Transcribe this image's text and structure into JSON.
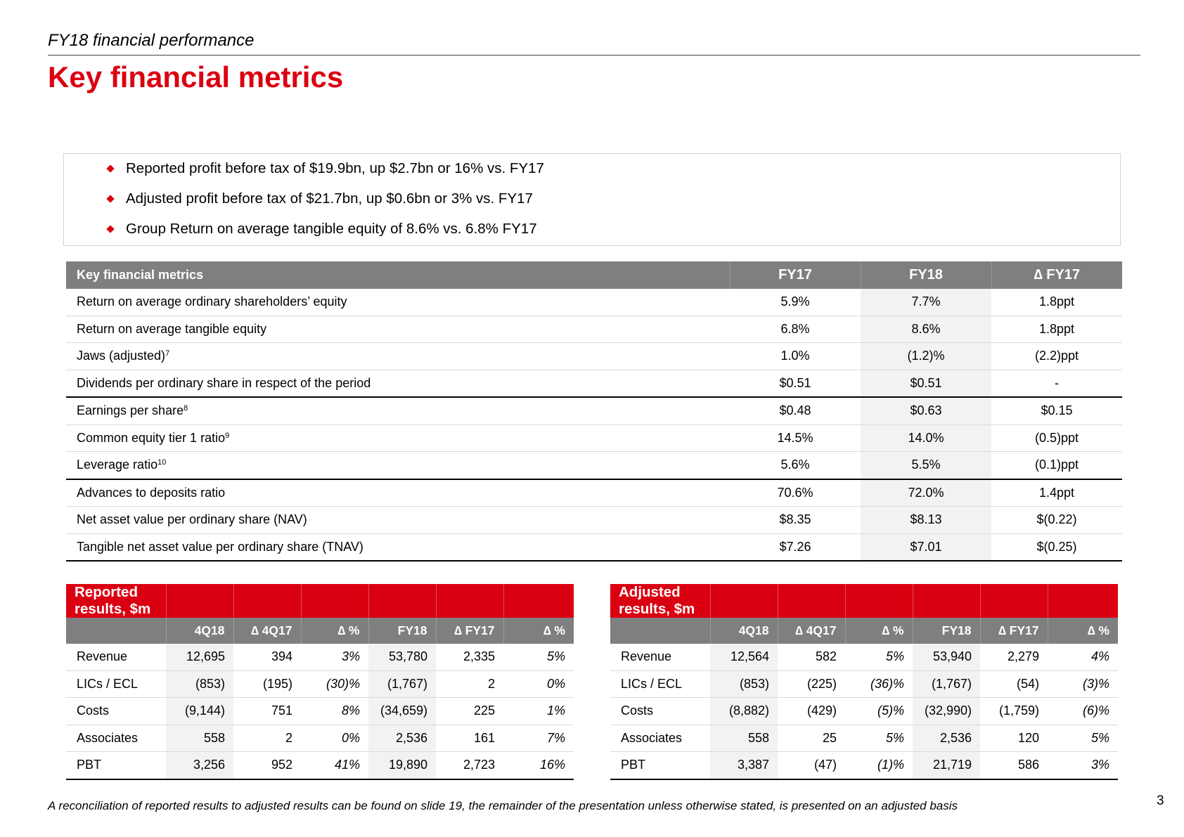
{
  "header": {
    "section": "FY18 financial performance",
    "title": "Key financial metrics"
  },
  "highlights": [
    "Reported profit before tax of $19.9bn, up $2.7bn or 16% vs. FY17",
    "Adjusted profit before tax of $21.7bn, up $0.6bn or 3% vs. FY17",
    "Group Return on average tangible equity of 8.6% vs. 6.8% FY17"
  ],
  "metrics_table": {
    "columns": [
      "Key financial metrics",
      "FY17",
      "FY18",
      "∆ FY17"
    ],
    "rows": [
      {
        "label": "Return on average ordinary shareholders’ equity",
        "note": "",
        "fy17": "5.9%",
        "fy18": "7.7%",
        "delta": "1.8ppt"
      },
      {
        "label": "Return on average tangible equity",
        "note": "",
        "fy17": "6.8%",
        "fy18": "8.6%",
        "delta": "1.8ppt"
      },
      {
        "label": "Jaws (adjusted)",
        "note": "7",
        "fy17": "1.0%",
        "fy18": "(1.2)%",
        "delta": "(2.2)ppt"
      },
      {
        "label": "Dividends per ordinary share in respect of the period",
        "note": "",
        "fy17": "$0.51",
        "fy18": "$0.51",
        "delta": "-"
      },
      {
        "label": "Earnings per share",
        "note": "8",
        "fy17": "$0.48",
        "fy18": "$0.63",
        "delta": "$0.15"
      },
      {
        "label": "Common equity tier 1 ratio",
        "note": "9",
        "fy17": "14.5%",
        "fy18": "14.0%",
        "delta": "(0.5)ppt"
      },
      {
        "label": "Leverage ratio",
        "note": "10",
        "fy17": "5.6%",
        "fy18": "5.5%",
        "delta": "(0.1)ppt"
      },
      {
        "label": "Advances to deposits ratio",
        "note": "",
        "fy17": "70.6%",
        "fy18": "72.0%",
        "delta": "1.4ppt"
      },
      {
        "label": "Net asset value per ordinary share (NAV)",
        "note": "",
        "fy17": "$8.35",
        "fy18": "$8.13",
        "delta": "$(0.22)"
      },
      {
        "label": "Tangible net asset value per ordinary share (TNAV)",
        "note": "",
        "fy17": "$7.26",
        "fy18": "$7.01",
        "delta": "$(0.25)"
      }
    ]
  },
  "reported_results": {
    "title": "Reported results, $m",
    "columns": [
      "4Q18",
      "∆ 4Q17",
      "∆ %",
      "FY18",
      "∆ FY17",
      "∆ %"
    ],
    "rows": [
      {
        "label": "Revenue",
        "values": [
          "12,695",
          "394",
          "3%",
          "53,780",
          "2,335",
          "5%"
        ]
      },
      {
        "label": "LICs / ECL",
        "values": [
          "(853)",
          "(195)",
          "(30)%",
          "(1,767)",
          "2",
          "0%"
        ]
      },
      {
        "label": "Costs",
        "values": [
          "(9,144)",
          "751",
          "8%",
          "(34,659)",
          "225",
          "1%"
        ]
      },
      {
        "label": "Associates",
        "values": [
          "558",
          "2",
          "0%",
          "2,536",
          "161",
          "7%"
        ]
      },
      {
        "label": "PBT",
        "values": [
          "3,256",
          "952",
          "41%",
          "19,890",
          "2,723",
          "16%"
        ]
      }
    ]
  },
  "adjusted_results": {
    "title": "Adjusted results, $m",
    "columns": [
      "4Q18",
      "∆ 4Q17",
      "∆ %",
      "FY18",
      "∆ FY17",
      "∆ %"
    ],
    "rows": [
      {
        "label": "Revenue",
        "values": [
          "12,564",
          "582",
          "5%",
          "53,940",
          "2,279",
          "4%"
        ]
      },
      {
        "label": "LICs / ECL",
        "values": [
          "(853)",
          "(225)",
          "(36)%",
          "(1,767)",
          "(54)",
          "(3)%"
        ]
      },
      {
        "label": "Costs",
        "values": [
          "(8,882)",
          "(429)",
          "(5)%",
          "(32,990)",
          "(1,759)",
          "(6)%"
        ]
      },
      {
        "label": "Associates",
        "values": [
          "558",
          "25",
          "5%",
          "2,536",
          "120",
          "5%"
        ]
      },
      {
        "label": "PBT",
        "values": [
          "3,387",
          "(47)",
          "(1)%",
          "21,719",
          "586",
          "3%"
        ]
      }
    ]
  },
  "footer": {
    "note": "A reconciliation of reported results to adjusted results can be found on slide 19, the remainder of the presentation unless otherwise stated, is presented on an adjusted basis",
    "page_number": "3"
  },
  "colors": {
    "accent_red": "#db0011",
    "header_grey": "#7f7f7f",
    "shade_grey": "#f2f2f2"
  }
}
